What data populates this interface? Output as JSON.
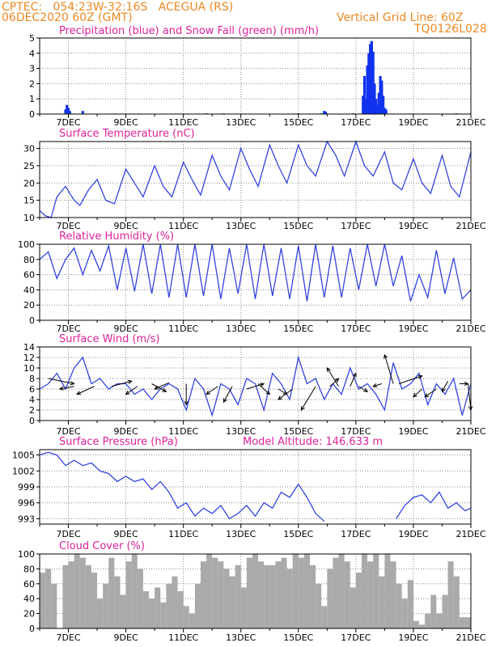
{
  "header": {
    "line1": "CPTEC:   054:23W-32:16S   ACEGUA (RS)",
    "line2": "06DEC2020 60Z (GMT)",
    "grid_note": "Vertical Grid Line: 60Z",
    "code": "TQ0126L028"
  },
  "colors": {
    "header": "#ee8822",
    "title": "#dd2299",
    "line": "#3344dd",
    "precip": "#1133ee",
    "snow": "#22aa22",
    "cloud": "#aaaaaa"
  },
  "x_ticks": [
    "7DEC",
    "9DEC",
    "11DEC",
    "13DEC",
    "15DEC",
    "17DEC",
    "19DEC",
    "21DEC"
  ],
  "chart_data": [
    {
      "type": "bar",
      "title": "Precipitation (blue) and Snow Fall (green) (mm/h)",
      "ylim": [
        0,
        5
      ],
      "yticks": [
        "0",
        "1",
        "2",
        "3",
        "4",
        "5"
      ],
      "series": [
        {
          "name": "Precipitation",
          "x": [
            6.9,
            6.95,
            7.0,
            7.05,
            7.5,
            15.9,
            15.95,
            17.25,
            17.3,
            17.35,
            17.4,
            17.45,
            17.5,
            17.55,
            17.6,
            17.65,
            17.7,
            17.75,
            17.8,
            17.85,
            17.9,
            17.95,
            18.0,
            18.05
          ],
          "values": [
            0.3,
            0.6,
            0.4,
            0.2,
            0.2,
            0.2,
            0.15,
            1.2,
            2.5,
            1.0,
            3.2,
            4.0,
            4.6,
            4.8,
            4.1,
            2.0,
            1.0,
            0.6,
            1.4,
            2.5,
            2.2,
            1.2,
            0.4,
            0.3
          ]
        },
        {
          "name": "Snow Fall",
          "x": [
            6.9,
            7.5,
            11.8,
            12.4,
            15.0,
            15.8,
            16.9,
            17.9,
            20.5
          ],
          "values": [
            0.05,
            0.05,
            0.05,
            0.05,
            0.05,
            0.05,
            0.05,
            0.05,
            0.05
          ]
        }
      ]
    },
    {
      "type": "line",
      "title": "Surface Temperature (nC)",
      "ylim": [
        10,
        32
      ],
      "yticks": [
        "10",
        "15",
        "20",
        "25",
        "30"
      ],
      "series": [
        {
          "x": [
            6.0,
            6.2,
            6.4,
            6.6,
            6.9,
            7.2,
            7.4,
            7.7,
            8.0,
            8.3,
            8.6,
            9.0,
            9.3,
            9.6,
            10.0,
            10.3,
            10.6,
            11.0,
            11.3,
            11.6,
            12.0,
            12.3,
            12.6,
            13.0,
            13.3,
            13.6,
            14.0,
            14.3,
            14.6,
            15.0,
            15.3,
            15.6,
            16.0,
            16.3,
            16.6,
            17.0,
            17.3,
            17.6,
            18.0,
            18.3,
            18.6,
            19.0,
            19.3,
            19.6,
            20.0,
            20.3,
            20.6,
            21.0
          ],
          "values": [
            12,
            10.5,
            10,
            16,
            19,
            15,
            13.5,
            18,
            21,
            15,
            14,
            24,
            20,
            16,
            25,
            19,
            16,
            26,
            21,
            16.5,
            28,
            22,
            18,
            30,
            24,
            19,
            31,
            25,
            20,
            31,
            25,
            22,
            32,
            28,
            22,
            32,
            25,
            22,
            29,
            20,
            18,
            27,
            20,
            17,
            28,
            19,
            16,
            29
          ]
        }
      ]
    },
    {
      "type": "line",
      "title": "Relative Humidity (%)",
      "ylim": [
        0,
        100
      ],
      "yticks": [
        "0",
        "20",
        "40",
        "60",
        "80",
        "100"
      ],
      "series": [
        {
          "x": [
            6.0,
            6.3,
            6.6,
            6.9,
            7.2,
            7.5,
            7.8,
            8.1,
            8.4,
            8.7,
            9.0,
            9.3,
            9.6,
            9.9,
            10.2,
            10.5,
            10.8,
            11.1,
            11.4,
            11.7,
            12.0,
            12.3,
            12.6,
            12.9,
            13.2,
            13.5,
            13.8,
            14.1,
            14.4,
            14.7,
            15.0,
            15.3,
            15.6,
            15.9,
            16.2,
            16.5,
            16.8,
            17.1,
            17.4,
            17.7,
            18.0,
            18.3,
            18.6,
            18.9,
            19.2,
            19.5,
            19.8,
            20.1,
            20.4,
            20.7,
            21.0
          ],
          "values": [
            80,
            90,
            55,
            80,
            95,
            60,
            92,
            65,
            98,
            40,
            95,
            38,
            100,
            35,
            100,
            30,
            100,
            30,
            100,
            32,
            100,
            28,
            95,
            35,
            100,
            28,
            100,
            32,
            95,
            28,
            98,
            25,
            100,
            30,
            98,
            30,
            95,
            40,
            100,
            45,
            100,
            45,
            85,
            25,
            60,
            30,
            92,
            35,
            82,
            28,
            40
          ]
        }
      ]
    },
    {
      "type": "line",
      "title": "Surface Wind (m/s)",
      "ylim": [
        0,
        14
      ],
      "yticks": [
        "0",
        "2",
        "4",
        "6",
        "8",
        "10",
        "12",
        "14"
      ],
      "series": [
        {
          "x": [
            6.0,
            6.3,
            6.6,
            6.9,
            7.2,
            7.5,
            7.8,
            8.1,
            8.4,
            8.7,
            9.0,
            9.3,
            9.6,
            9.9,
            10.2,
            10.5,
            10.8,
            11.1,
            11.4,
            11.7,
            12.0,
            12.3,
            12.6,
            12.9,
            13.2,
            13.5,
            13.8,
            14.1,
            14.4,
            14.7,
            15.0,
            15.3,
            15.6,
            15.9,
            16.2,
            16.5,
            16.8,
            17.1,
            17.4,
            17.7,
            18.0,
            18.3,
            18.6,
            18.9,
            19.2,
            19.5,
            19.8,
            20.1,
            20.4,
            20.7,
            21.0
          ],
          "values": [
            6,
            7,
            9,
            6,
            10,
            12,
            7,
            8,
            6,
            7,
            7,
            5,
            6,
            4,
            6,
            7,
            6,
            2,
            8,
            6,
            1,
            7,
            6,
            3,
            8,
            7,
            2,
            9,
            7,
            4,
            12,
            7,
            8,
            4,
            7,
            5,
            10,
            6,
            7,
            5,
            2,
            11,
            6,
            7,
            9,
            3,
            7,
            5,
            8,
            1,
            7
          ]
        }
      ]
    },
    {
      "type": "line",
      "title": "Surface Pressure (hPa)",
      "annotation": "Model Altitude: 146.633 m",
      "ylim": [
        992,
        1006
      ],
      "yticks": [
        "993",
        "996",
        "999",
        "1002",
        "1005"
      ],
      "series": [
        {
          "x": [
            6.0,
            6.3,
            6.6,
            6.9,
            7.2,
            7.5,
            7.8,
            8.1,
            8.4,
            8.7,
            9.0,
            9.3,
            9.6,
            9.9,
            10.2,
            10.5,
            10.8,
            11.1,
            11.4,
            11.7,
            12.0,
            12.3,
            12.6,
            12.9,
            13.2,
            13.5,
            13.8,
            14.1,
            14.4,
            14.7,
            15.0,
            15.3,
            15.6,
            15.9
          ],
          "values": [
            1005,
            1005.5,
            1005,
            1003,
            1004,
            1003,
            1003.5,
            1002,
            1001.5,
            1000,
            1001,
            1000,
            1000.5,
            998.5,
            1000,
            998,
            995,
            996,
            993.5,
            995,
            994,
            995.5,
            993,
            994,
            995.5,
            993.5,
            996,
            995,
            998,
            997,
            999.5,
            997,
            994,
            992.5
          ]
        },
        {
          "x": [
            18.4,
            18.7,
            19.0,
            19.3,
            19.6,
            19.9,
            20.2,
            20.5,
            20.8,
            21.0
          ],
          "values": [
            993,
            995.5,
            997,
            997.5,
            996,
            998,
            995,
            996,
            994.5,
            995
          ]
        }
      ]
    },
    {
      "type": "bar",
      "title": "Cloud Cover (%)",
      "ylim": [
        0,
        100
      ],
      "yticks": [
        "0",
        "20",
        "40",
        "60",
        "80",
        "100"
      ],
      "series": [
        {
          "x": [
            6.1,
            6.3,
            6.5,
            6.7,
            6.9,
            7.1,
            7.3,
            7.5,
            7.7,
            7.9,
            8.1,
            8.3,
            8.5,
            8.7,
            8.9,
            9.1,
            9.3,
            9.5,
            9.7,
            9.9,
            10.1,
            10.3,
            10.5,
            10.7,
            10.9,
            11.1,
            11.3,
            11.5,
            11.7,
            11.9,
            12.1,
            12.3,
            12.5,
            12.7,
            12.9,
            13.1,
            13.3,
            13.5,
            13.7,
            13.9,
            14.1,
            14.3,
            14.5,
            14.7,
            14.9,
            15.1,
            15.3,
            15.5,
            15.7,
            15.9,
            16.1,
            16.3,
            16.5,
            16.7,
            16.9,
            17.1,
            17.3,
            17.5,
            17.7,
            17.9,
            18.1,
            18.3,
            18.5,
            18.7,
            18.9,
            19.1,
            19.3,
            19.5,
            19.7,
            19.9,
            20.1,
            20.3,
            20.5,
            20.7,
            20.9
          ],
          "values": [
            75,
            80,
            60,
            0,
            85,
            90,
            100,
            95,
            85,
            75,
            40,
            60,
            95,
            70,
            45,
            90,
            100,
            80,
            50,
            40,
            55,
            35,
            60,
            70,
            50,
            30,
            20,
            60,
            90,
            100,
            95,
            90,
            80,
            70,
            85,
            55,
            95,
            100,
            90,
            85,
            85,
            90,
            95,
            80,
            100,
            95,
            100,
            85,
            60,
            30,
            80,
            95,
            100,
            90,
            55,
            75,
            100,
            90,
            100,
            70,
            100,
            90,
            60,
            40,
            65,
            10,
            5,
            20,
            45,
            20,
            45,
            90,
            70,
            15,
            15
          ]
        }
      ]
    }
  ]
}
